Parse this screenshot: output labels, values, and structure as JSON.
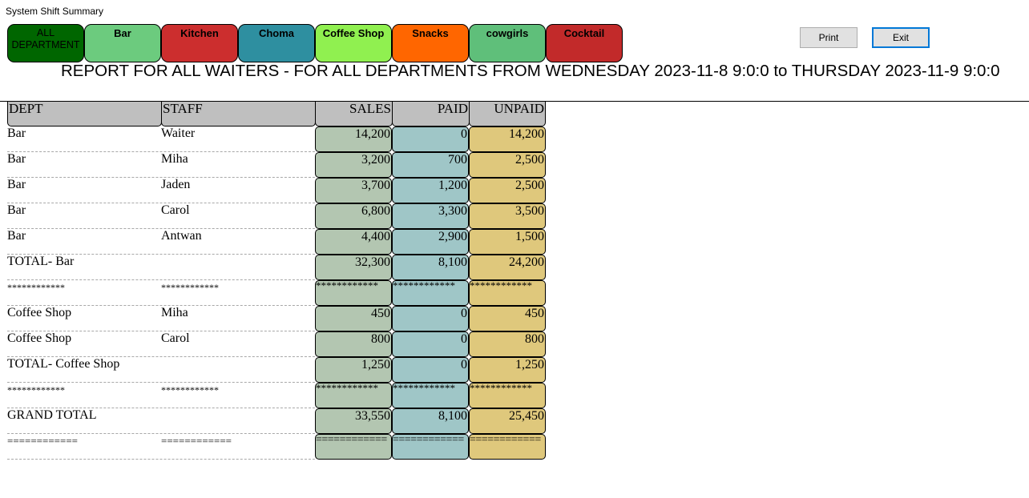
{
  "window": {
    "title": "System Shift Summary"
  },
  "departments": [
    {
      "label": "ALL DEPARTMENT",
      "bg": "#006600",
      "fg": "#000000"
    },
    {
      "label": "Bar",
      "bg": "#6ccb7e",
      "fg": "#000000"
    },
    {
      "label": "Kitchen",
      "bg": "#cc2e2e",
      "fg": "#000000"
    },
    {
      "label": "Choma",
      "bg": "#2e8fa0",
      "fg": "#000000"
    },
    {
      "label": "Coffee Shop",
      "bg": "#90f050",
      "fg": "#000000"
    },
    {
      "label": "Snacks",
      "bg": "#ff6600",
      "fg": "#000000"
    },
    {
      "label": "cowgirls",
      "bg": "#5fbf7a",
      "fg": "#000000"
    },
    {
      "label": "Cocktail",
      "bg": "#c22a2a",
      "fg": "#000000"
    }
  ],
  "buttons": {
    "print": "Print",
    "exit": "Exit"
  },
  "report_heading": "REPORT FOR ALL WAITERS - FOR ALL DEPARTMENTS FROM WEDNESDAY 2023-11-8 9:0:0 to THURSDAY 2023-11-9 9:0:0",
  "columns": {
    "dept": "DEPT",
    "staff": "STAFF",
    "sales": "SALES",
    "paid": "PAID",
    "unpaid": "UNPAID"
  },
  "rows": [
    {
      "type": "data",
      "dept": "Bar",
      "staff": "Waiter",
      "sales": "14,200",
      "paid": "0",
      "unpaid": "14,200"
    },
    {
      "type": "data",
      "dept": "Bar",
      "staff": "Miha",
      "sales": "3,200",
      "paid": "700",
      "unpaid": "2,500"
    },
    {
      "type": "data",
      "dept": "Bar",
      "staff": "Jaden",
      "sales": "3,700",
      "paid": "1,200",
      "unpaid": "2,500"
    },
    {
      "type": "data",
      "dept": "Bar",
      "staff": "Carol",
      "sales": "6,800",
      "paid": "3,300",
      "unpaid": "3,500"
    },
    {
      "type": "data",
      "dept": "Bar",
      "staff": "Antwan",
      "sales": "4,400",
      "paid": "2,900",
      "unpaid": "1,500"
    },
    {
      "type": "total",
      "dept": "TOTAL- Bar",
      "staff": "",
      "sales": "32,300",
      "paid": "8,100",
      "unpaid": "24,200"
    },
    {
      "type": "stars",
      "dept": "************",
      "staff": "************",
      "sales": "************",
      "paid": "************",
      "unpaid": "************"
    },
    {
      "type": "data",
      "dept": "Coffee Shop",
      "staff": "Miha",
      "sales": "450",
      "paid": "0",
      "unpaid": "450"
    },
    {
      "type": "data",
      "dept": "Coffee Shop",
      "staff": "Carol",
      "sales": "800",
      "paid": "0",
      "unpaid": "800"
    },
    {
      "type": "total",
      "dept": "TOTAL- Coffee Shop",
      "staff": "",
      "sales": "1,250",
      "paid": "0",
      "unpaid": "1,250"
    },
    {
      "type": "stars",
      "dept": "************",
      "staff": "************",
      "sales": "************",
      "paid": "************",
      "unpaid": "************"
    },
    {
      "type": "grand",
      "dept": "GRAND TOTAL",
      "staff": "",
      "sales": "33,550",
      "paid": "8,100",
      "unpaid": "25,450"
    },
    {
      "type": "eqs",
      "dept": "============",
      "staff": "============",
      "sales": "============",
      "paid": "============",
      "unpaid": "============"
    }
  ]
}
